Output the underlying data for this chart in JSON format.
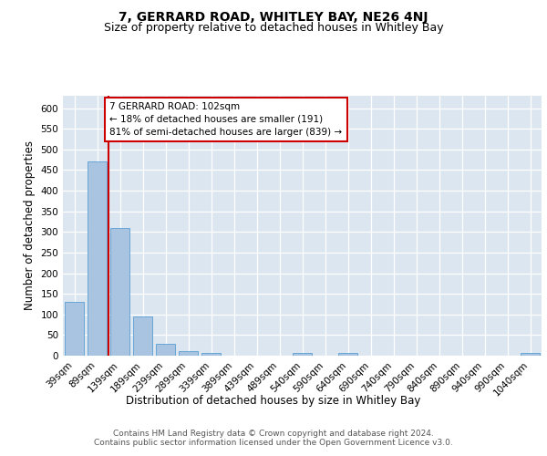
{
  "title": "7, GERRARD ROAD, WHITLEY BAY, NE26 4NJ",
  "subtitle": "Size of property relative to detached houses in Whitley Bay",
  "xlabel": "Distribution of detached houses by size in Whitley Bay",
  "ylabel": "Number of detached properties",
  "categories": [
    "39sqm",
    "89sqm",
    "139sqm",
    "189sqm",
    "239sqm",
    "289sqm",
    "339sqm",
    "389sqm",
    "439sqm",
    "489sqm",
    "540sqm",
    "590sqm",
    "640sqm",
    "690sqm",
    "740sqm",
    "790sqm",
    "840sqm",
    "890sqm",
    "940sqm",
    "990sqm",
    "1040sqm"
  ],
  "values": [
    130,
    470,
    310,
    96,
    28,
    11,
    7,
    0,
    0,
    0,
    6,
    0,
    6,
    0,
    0,
    0,
    0,
    0,
    0,
    0,
    6
  ],
  "bar_color": "#a8c4e0",
  "bar_edge_color": "#5a9fd4",
  "bg_color": "#dce6f0",
  "property_line_color": "#cc0000",
  "annotation_text": "7 GERRARD ROAD: 102sqm\n← 18% of detached houses are smaller (191)\n81% of semi-detached houses are larger (839) →",
  "annotation_box_color": "#ffffff",
  "annotation_box_edge": "#cc0000",
  "ylim": [
    0,
    630
  ],
  "yticks": [
    0,
    50,
    100,
    150,
    200,
    250,
    300,
    350,
    400,
    450,
    500,
    550,
    600
  ],
  "footer": "Contains HM Land Registry data © Crown copyright and database right 2024.\nContains public sector information licensed under the Open Government Licence v3.0.",
  "title_fontsize": 10,
  "subtitle_fontsize": 9,
  "xlabel_fontsize": 8.5,
  "ylabel_fontsize": 8.5,
  "tick_fontsize": 7.5,
  "footer_fontsize": 6.5
}
